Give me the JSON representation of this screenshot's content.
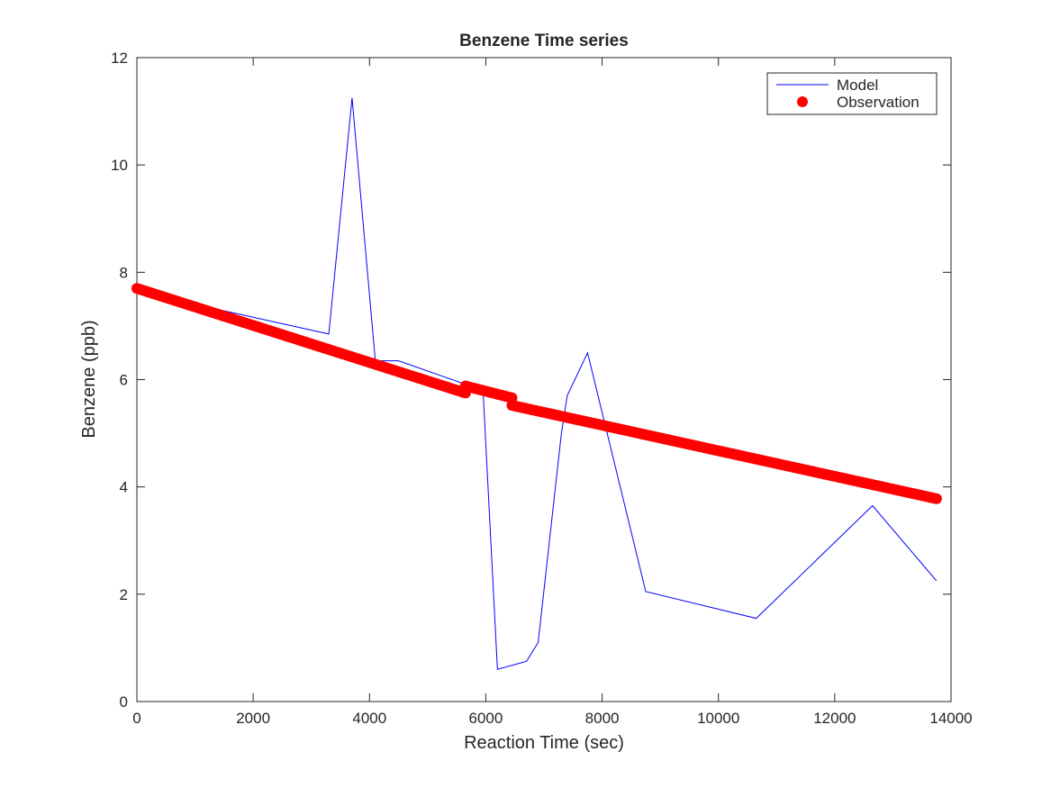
{
  "chart_data": {
    "type": "line",
    "title": "Benzene Time series",
    "xlabel": "Reaction Time (sec)",
    "ylabel": "Benzene (ppb)",
    "xlim": [
      0,
      14000
    ],
    "ylim": [
      0,
      12
    ],
    "xticks": [
      0,
      2000,
      4000,
      6000,
      8000,
      10000,
      12000,
      14000
    ],
    "yticks": [
      0,
      2,
      4,
      6,
      8,
      10,
      12
    ],
    "xtick_labels": [
      "0",
      "2000",
      "4000",
      "6000",
      "8000",
      "10000",
      "12000",
      "14000"
    ],
    "ytick_labels": [
      "0",
      "2",
      "4",
      "6",
      "8",
      "10",
      "12"
    ],
    "grid": false,
    "legend_position": "top-right",
    "series": [
      {
        "name": "Model",
        "kind": "line",
        "color": "#0000ff",
        "x": [
          0,
          800,
          3300,
          3700,
          4100,
          4500,
          5550,
          5950,
          6200,
          6700,
          6900,
          7300,
          7400,
          7750,
          8750,
          10650,
          12650,
          13750
        ],
        "y": [
          7.7,
          7.45,
          6.85,
          11.25,
          6.35,
          6.35,
          5.95,
          5.85,
          0.6,
          0.75,
          1.1,
          5.0,
          5.7,
          6.5,
          2.05,
          1.55,
          3.65,
          2.25
        ]
      },
      {
        "name": "Observation",
        "kind": "scatter",
        "color": "#ff0000",
        "segments": [
          {
            "x_start": 0,
            "x_end": 5650,
            "y_start": 7.7,
            "y_end": 5.75
          },
          {
            "x_start": 5650,
            "x_end": 6450,
            "y_start": 5.88,
            "y_end": 5.66
          },
          {
            "x_start": 6450,
            "x_end": 13750,
            "y_start": 5.52,
            "y_end": 3.78
          }
        ]
      }
    ]
  }
}
